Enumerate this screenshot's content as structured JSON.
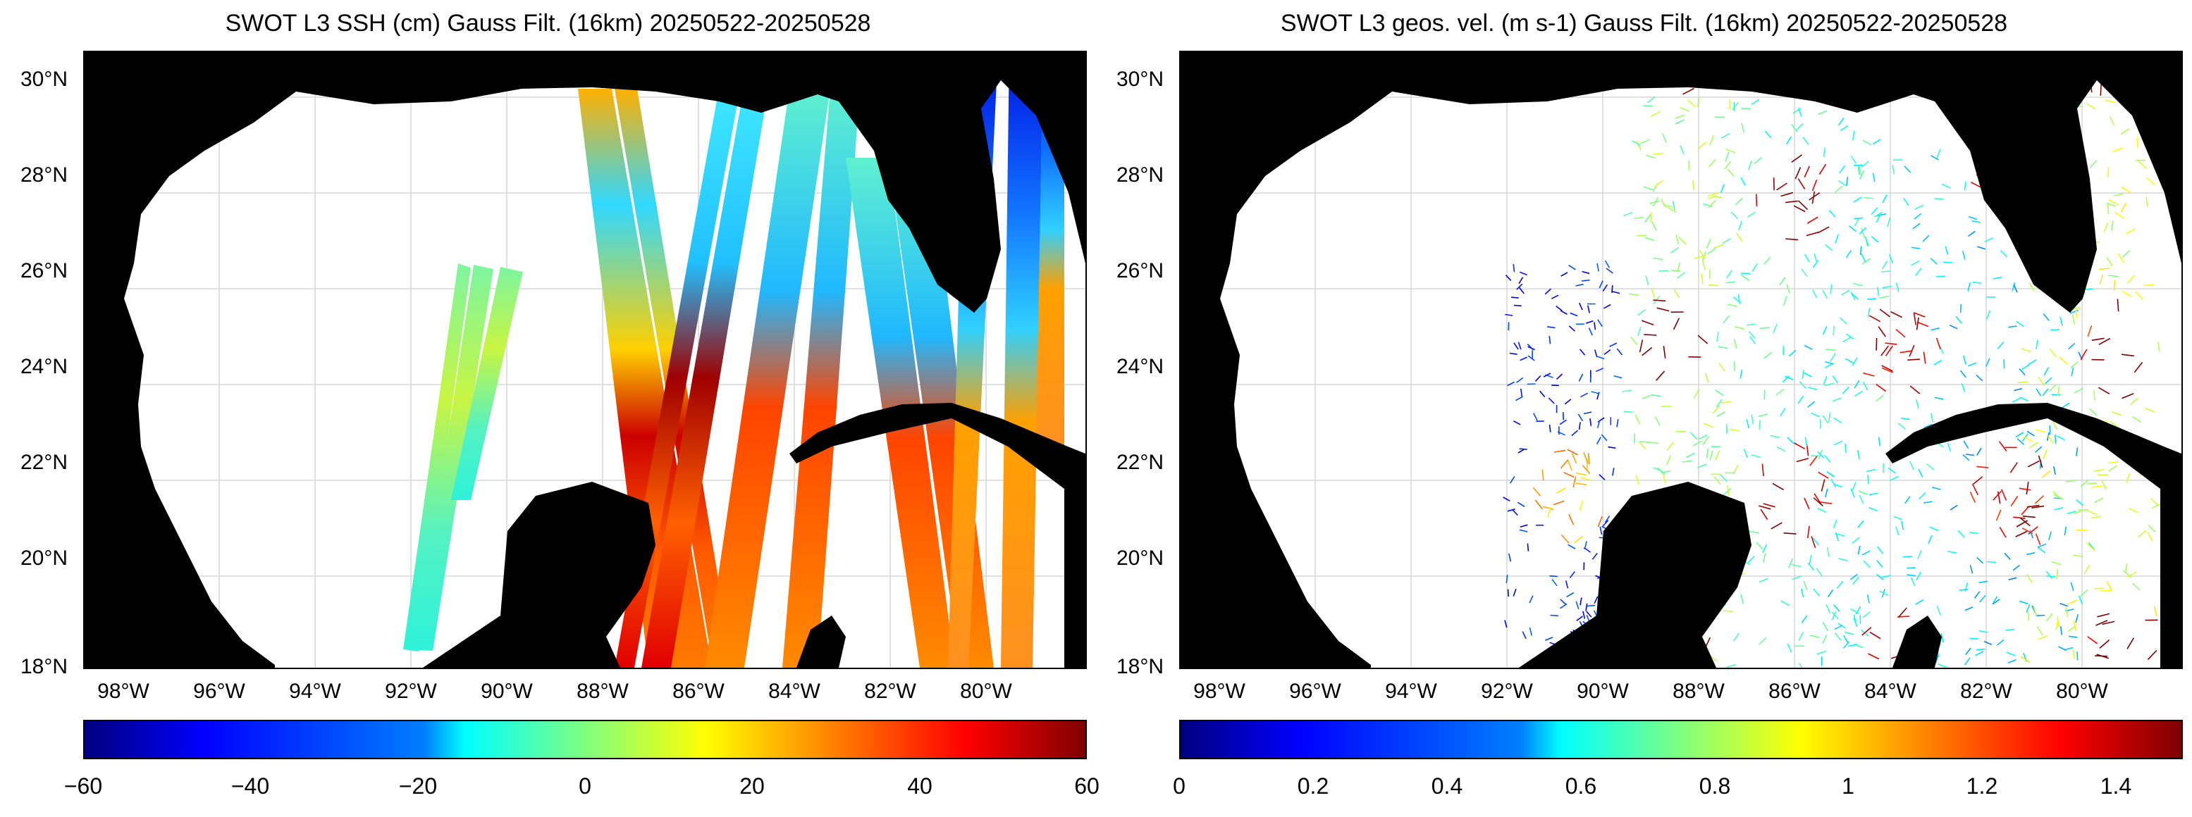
{
  "left_panel": {
    "title": "SWOT L3 SSH (cm) Gauss Filt. (16km) 20250522-20250528",
    "colorbar_ticks": [
      "−60",
      "−40",
      "−20",
      "0",
      "20",
      "40",
      "60"
    ],
    "colorbar_range": [
      -60,
      60
    ]
  },
  "right_panel": {
    "title": "SWOT L3 geos. vel. (m s-1) Gauss Filt. (16km) 20250522-20250528",
    "colorbar_ticks": [
      "0",
      "0.2",
      "0.4",
      "0.6",
      "0.8",
      "1",
      "1.2",
      "1.4"
    ],
    "colorbar_range": [
      0,
      1.5
    ]
  },
  "lat_labels": [
    "30°N",
    "28°N",
    "26°N",
    "24°N",
    "22°N",
    "20°N",
    "18°N"
  ],
  "lon_labels": [
    "98°W",
    "96°W",
    "94°W",
    "92°W",
    "90°W",
    "88°W",
    "86°W",
    "84°W",
    "82°W",
    "80°W"
  ],
  "colors": {
    "land": "#000000",
    "no_data": "#ffffff",
    "grid": "#d0d0d0"
  },
  "colormap": "jet"
}
